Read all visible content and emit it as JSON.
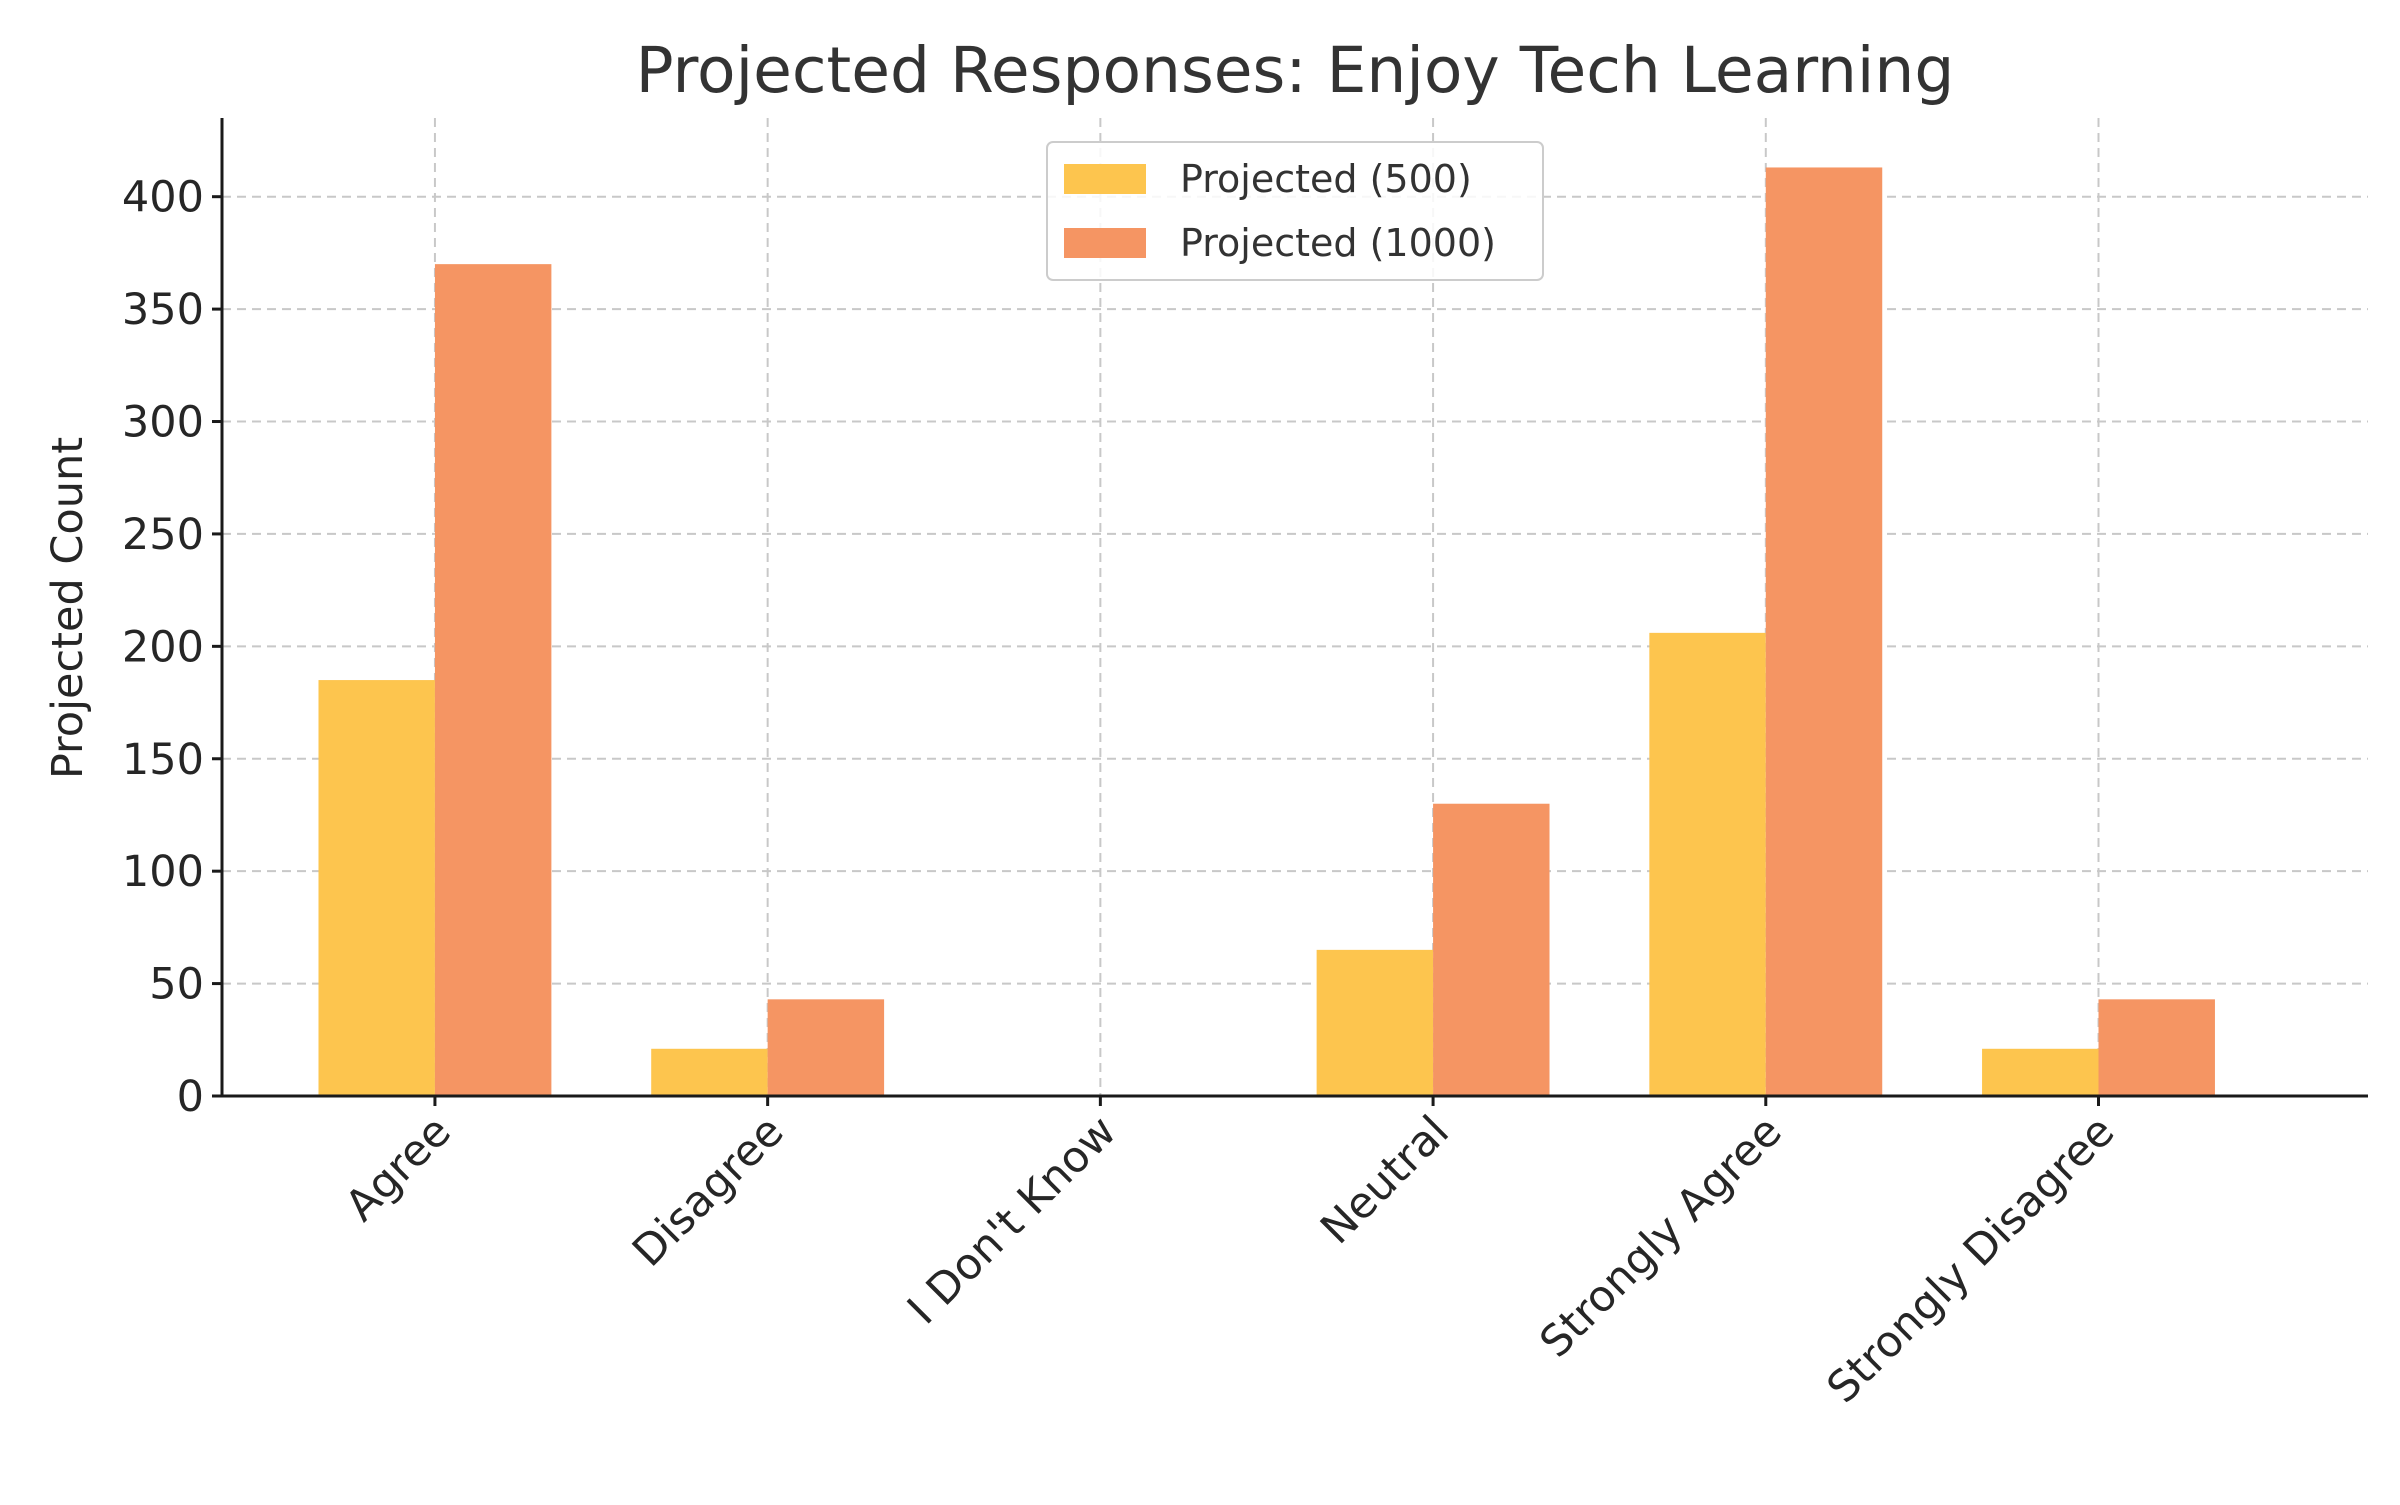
{
  "chart_data": {
    "type": "bar",
    "title": "Projected Responses: Enjoy Tech Learning",
    "xlabel": "",
    "ylabel": "Projected Count",
    "categories": [
      "Agree",
      "Disagree",
      "I Don't Know",
      "Neutral",
      "Strongly Agree",
      "Strongly Disagree"
    ],
    "series": [
      {
        "name": "Projected (500)",
        "color": "#fdc54e",
        "values": [
          185,
          21,
          0,
          65,
          206,
          21
        ]
      },
      {
        "name": "Projected (1000)",
        "color": "#f59563",
        "values": [
          370,
          43,
          0,
          130,
          413,
          43
        ]
      }
    ],
    "ylim": [
      0,
      435
    ],
    "yticks": [
      0,
      50,
      100,
      150,
      200,
      250,
      300,
      350,
      400
    ],
    "grid": true,
    "legend_position": "top-center"
  }
}
